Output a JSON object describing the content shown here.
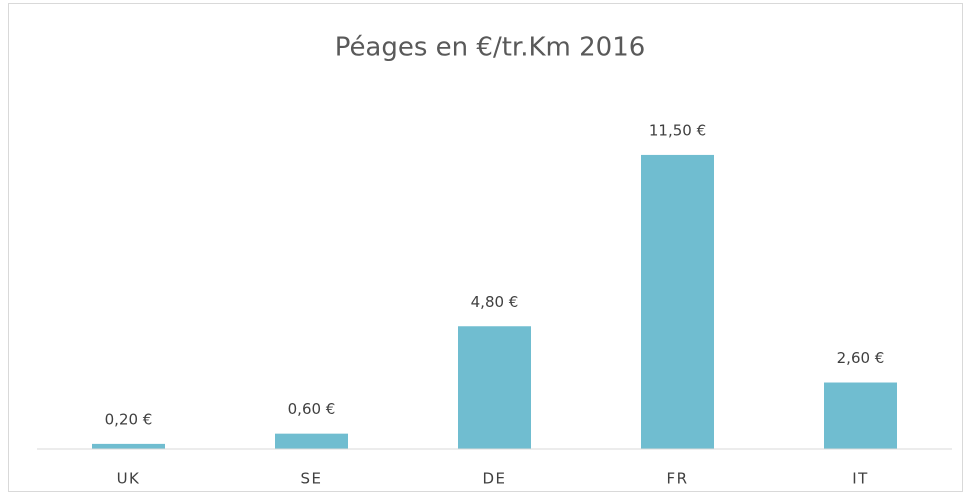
{
  "chart_data": {
    "type": "bar",
    "title": "Péages en €/tr.Km 2016",
    "categories": [
      "UK",
      "SE",
      "DE",
      "FR",
      "IT"
    ],
    "values": [
      0.2,
      0.6,
      4.8,
      11.5,
      2.6
    ],
    "value_labels": [
      "0,20 €",
      "0,60 €",
      "4,80 €",
      "11,50 €",
      "2,60 €"
    ],
    "color": "#70bdd0",
    "ylim": [
      0,
      14
    ]
  }
}
